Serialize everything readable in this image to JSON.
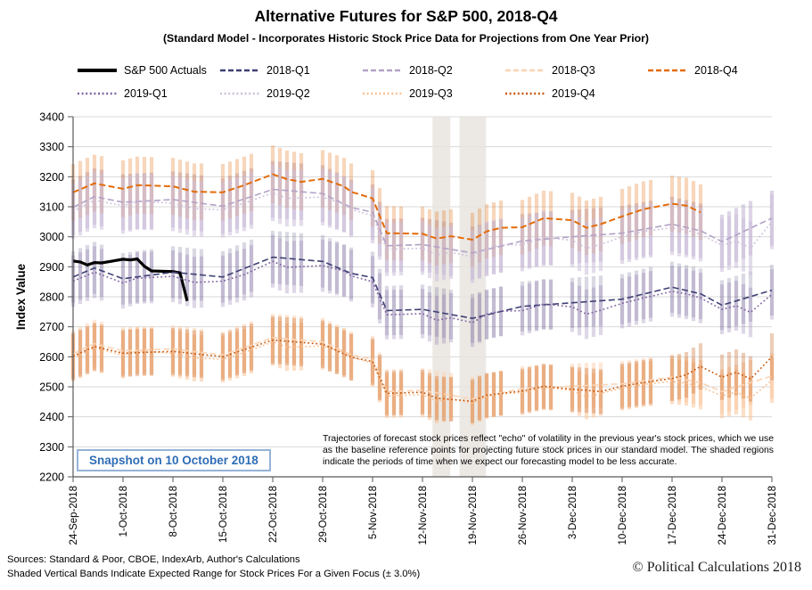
{
  "snapshot_label": "Snapshot on 10 October 2018",
  "annotation": "Trajectories of forecast stock prices reflect \"echo\" of volatility in  the previous year's stock prices, which we use as the baseline reference points for projecting future stock prices in our standard model.   The shaded regions indicate the periods of time when we expect our forecasting model to be less accurate.",
  "footer": {
    "sources": "Sources: Standard & Poor, CBOE, IndexArb, Author's Calculations",
    "bands_note": "Shaded Vertical Bands Indicate Expected Range for Stock Prices For a Given Focus (± 3.0%)",
    "copyright": "© Political Calculations 2018"
  },
  "colors": {
    "grid": "#D9D9D9",
    "axis": "#595959",
    "tick_text": "#000000",
    "shaded_region": "#E7E4DE",
    "snapshot_text": "#2F6DB5",
    "snapshot_border": "#95B3D7"
  },
  "chart_data": {
    "type": "line",
    "title": "Alternative Futures for S&P 500, 2018-Q4",
    "subtitle": "(Standard Model - Incorporates Historic Stock Price Data for Projections from One Year Prior)",
    "xlabel": "",
    "ylabel": "Index Value",
    "ylim": [
      2200,
      3400
    ],
    "ytick_step": 100,
    "grid": true,
    "legend_position": "top",
    "band_pct": 3.0,
    "x_unit": "calendar days since 24-Sep-2018 (day 0 = Monday; weekends skipped)",
    "x_ticks": [
      {
        "day": 0,
        "label": "24-Sep-2018"
      },
      {
        "day": 7,
        "label": "1-Oct-2018"
      },
      {
        "day": 14,
        "label": "8-Oct-2018"
      },
      {
        "day": 21,
        "label": "15-Oct-2018"
      },
      {
        "day": 28,
        "label": "22-Oct-2018"
      },
      {
        "day": 35,
        "label": "29-Oct-2018"
      },
      {
        "day": 42,
        "label": "5-Nov-2018"
      },
      {
        "day": 49,
        "label": "12-Nov-2018"
      },
      {
        "day": 56,
        "label": "19-Nov-2018"
      },
      {
        "day": 63,
        "label": "26-Nov-2018"
      },
      {
        "day": 70,
        "label": "3-Dec-2018"
      },
      {
        "day": 77,
        "label": "10-Dec-2018"
      },
      {
        "day": 84,
        "label": "17-Dec-2018"
      },
      {
        "day": 91,
        "label": "24-Dec-2018"
      },
      {
        "day": 98,
        "label": "31-Dec-2018"
      }
    ],
    "shaded_regions": [
      {
        "from_day": 50.4,
        "to_day": 52.9
      },
      {
        "from_day": 54.2,
        "to_day": 57.9
      }
    ],
    "series": [
      {
        "id": "sp500-actuals",
        "name": "S&P 500 Actuals",
        "style": "solid",
        "color": "#000000",
        "line_width": 3.2,
        "bands": false,
        "band_opacity": 0,
        "points": [
          [
            0,
            2919
          ],
          [
            1,
            2916
          ],
          [
            2,
            2906
          ],
          [
            3,
            2914
          ],
          [
            4,
            2913
          ],
          [
            7,
            2925
          ],
          [
            8,
            2923
          ],
          [
            9,
            2926
          ],
          [
            10,
            2902
          ],
          [
            11,
            2886
          ],
          [
            14,
            2884
          ],
          [
            15,
            2880
          ],
          [
            16,
            2786
          ]
        ]
      },
      {
        "id": "2018-q1",
        "name": "2018-Q1",
        "style": "dashed",
        "color": "#3F3F74",
        "line_width": 1.6,
        "bands": true,
        "band_opacity": 0.2,
        "points": [
          [
            0,
            2866
          ],
          [
            3,
            2896
          ],
          [
            7,
            2860
          ],
          [
            14,
            2882
          ],
          [
            21,
            2866
          ],
          [
            28,
            2932
          ],
          [
            35,
            2918
          ],
          [
            40,
            2868
          ],
          [
            42,
            2864
          ],
          [
            44,
            2754
          ],
          [
            49,
            2758
          ],
          [
            56,
            2728
          ],
          [
            63,
            2768
          ],
          [
            70,
            2780
          ],
          [
            77,
            2792
          ],
          [
            84,
            2832
          ],
          [
            88,
            2810
          ],
          [
            91,
            2772
          ],
          [
            98,
            2822
          ]
        ]
      },
      {
        "id": "2018-q2",
        "name": "2018-Q2",
        "style": "dashed",
        "color": "#B3A2C7",
        "line_width": 1.6,
        "bands": true,
        "band_opacity": 0.45,
        "points": [
          [
            0,
            3098
          ],
          [
            3,
            3134
          ],
          [
            7,
            3115
          ],
          [
            14,
            3124
          ],
          [
            21,
            3102
          ],
          [
            28,
            3158
          ],
          [
            35,
            3144
          ],
          [
            40,
            3086
          ],
          [
            42,
            3082
          ],
          [
            44,
            2970
          ],
          [
            49,
            2974
          ],
          [
            56,
            2946
          ],
          [
            63,
            2986
          ],
          [
            70,
            3000
          ],
          [
            77,
            3012
          ],
          [
            84,
            3042
          ],
          [
            88,
            3020
          ],
          [
            91,
            2984
          ],
          [
            98,
            3062
          ]
        ]
      },
      {
        "id": "2018-q3",
        "name": "2018-Q3",
        "style": "dashed",
        "color": "#FBD4B4",
        "line_width": 1.6,
        "bands": true,
        "band_opacity": 0.55,
        "points": [
          [
            0,
            2610
          ],
          [
            3,
            2644
          ],
          [
            7,
            2620
          ],
          [
            14,
            2626
          ],
          [
            21,
            2606
          ],
          [
            28,
            2664
          ],
          [
            35,
            2650
          ],
          [
            40,
            2596
          ],
          [
            42,
            2592
          ],
          [
            44,
            2484
          ],
          [
            49,
            2488
          ],
          [
            56,
            2460
          ],
          [
            63,
            2494
          ],
          [
            70,
            2502
          ],
          [
            77,
            2510
          ],
          [
            84,
            2532
          ],
          [
            88,
            2514
          ],
          [
            91,
            2484
          ],
          [
            98,
            2536
          ]
        ]
      },
      {
        "id": "2018-q4",
        "name": "2018-Q4",
        "style": "dashed",
        "color": "#E36C0A",
        "line_width": 2.0,
        "bands": true,
        "band_opacity": 0.28,
        "points": [
          [
            0,
            3148
          ],
          [
            3,
            3178
          ],
          [
            7,
            3160
          ],
          [
            9,
            3172
          ],
          [
            14,
            3168
          ],
          [
            17,
            3150
          ],
          [
            21,
            3148
          ],
          [
            24,
            3172
          ],
          [
            28,
            3208
          ],
          [
            30,
            3192
          ],
          [
            32,
            3183
          ],
          [
            35,
            3193
          ],
          [
            38,
            3168
          ],
          [
            40,
            3132
          ],
          [
            42,
            3128
          ],
          [
            44,
            3012
          ],
          [
            49,
            3010
          ],
          [
            51,
            2994
          ],
          [
            53,
            3002
          ],
          [
            56,
            2990
          ],
          [
            58,
            3018
          ],
          [
            60,
            3030
          ],
          [
            63,
            3032
          ],
          [
            66,
            3062
          ],
          [
            70,
            3055
          ],
          [
            72,
            3030
          ],
          [
            74,
            3042
          ],
          [
            77,
            3068
          ],
          [
            80,
            3092
          ],
          [
            84,
            3110
          ],
          [
            86,
            3104
          ],
          [
            88,
            3082
          ]
        ]
      },
      {
        "id": "2019-q1",
        "name": "2019-Q1",
        "style": "dotted",
        "color": "#8064A2",
        "line_width": 1.6,
        "bands": true,
        "band_opacity": 0.26,
        "points": [
          [
            0,
            2852
          ],
          [
            3,
            2882
          ],
          [
            7,
            2846
          ],
          [
            9,
            2862
          ],
          [
            14,
            2868
          ],
          [
            17,
            2848
          ],
          [
            21,
            2852
          ],
          [
            24,
            2874
          ],
          [
            28,
            2918
          ],
          [
            30,
            2898
          ],
          [
            35,
            2904
          ],
          [
            38,
            2886
          ],
          [
            40,
            2854
          ],
          [
            42,
            2850
          ],
          [
            44,
            2740
          ],
          [
            49,
            2744
          ],
          [
            51,
            2722
          ],
          [
            53,
            2730
          ],
          [
            56,
            2714
          ],
          [
            58,
            2742
          ],
          [
            60,
            2752
          ],
          [
            63,
            2754
          ],
          [
            66,
            2776
          ],
          [
            70,
            2766
          ],
          [
            72,
            2742
          ],
          [
            74,
            2755
          ],
          [
            77,
            2778
          ],
          [
            80,
            2796
          ],
          [
            84,
            2818
          ],
          [
            86,
            2810
          ],
          [
            88,
            2796
          ],
          [
            91,
            2758
          ],
          [
            93,
            2770
          ],
          [
            95,
            2748
          ],
          [
            98,
            2808
          ]
        ]
      },
      {
        "id": "2019-q2",
        "name": "2019-Q2",
        "style": "dotted",
        "color": "#CCC0DA",
        "line_width": 1.6,
        "bands": true,
        "band_opacity": 0.55,
        "points": [
          [
            0,
            3085
          ],
          [
            3,
            3122
          ],
          [
            7,
            3103
          ],
          [
            9,
            3118
          ],
          [
            14,
            3112
          ],
          [
            17,
            3094
          ],
          [
            21,
            3090
          ],
          [
            24,
            3112
          ],
          [
            28,
            3146
          ],
          [
            30,
            3128
          ],
          [
            35,
            3132
          ],
          [
            38,
            3108
          ],
          [
            40,
            3074
          ],
          [
            42,
            3070
          ],
          [
            44,
            2958
          ],
          [
            49,
            2962
          ],
          [
            51,
            2940
          ],
          [
            53,
            2948
          ],
          [
            56,
            2934
          ],
          [
            58,
            2962
          ],
          [
            60,
            2972
          ],
          [
            63,
            2974
          ],
          [
            66,
            2998
          ],
          [
            70,
            2988
          ],
          [
            72,
            2962
          ],
          [
            74,
            2975
          ],
          [
            77,
            3000
          ],
          [
            80,
            3018
          ],
          [
            84,
            3030
          ],
          [
            86,
            3022
          ],
          [
            88,
            3008
          ],
          [
            91,
            2972
          ],
          [
            93,
            2985
          ],
          [
            95,
            2962
          ],
          [
            98,
            3050
          ]
        ]
      },
      {
        "id": "2019-q3",
        "name": "2019-Q3",
        "style": "dotted",
        "color": "#FAC090",
        "line_width": 1.6,
        "bands": true,
        "band_opacity": 0.5,
        "points": [
          [
            0,
            2596
          ],
          [
            3,
            2630
          ],
          [
            7,
            2606
          ],
          [
            9,
            2620
          ],
          [
            14,
            2612
          ],
          [
            17,
            2596
          ],
          [
            21,
            2592
          ],
          [
            24,
            2614
          ],
          [
            28,
            2650
          ],
          [
            30,
            2632
          ],
          [
            35,
            2636
          ],
          [
            38,
            2616
          ],
          [
            40,
            2582
          ],
          [
            42,
            2578
          ],
          [
            44,
            2470
          ],
          [
            49,
            2474
          ],
          [
            51,
            2452
          ],
          [
            53,
            2460
          ],
          [
            56,
            2446
          ],
          [
            58,
            2468
          ],
          [
            60,
            2478
          ],
          [
            63,
            2480
          ],
          [
            66,
            2498
          ],
          [
            70,
            2488
          ],
          [
            72,
            2466
          ],
          [
            74,
            2478
          ],
          [
            77,
            2496
          ],
          [
            80,
            2508
          ],
          [
            84,
            2518
          ],
          [
            86,
            2512
          ],
          [
            88,
            2500
          ],
          [
            91,
            2470
          ],
          [
            93,
            2482
          ],
          [
            95,
            2462
          ],
          [
            98,
            2522
          ]
        ]
      },
      {
        "id": "2019-q4",
        "name": "2019-Q4",
        "style": "dotted",
        "color": "#C55A11",
        "line_width": 1.6,
        "bands": true,
        "band_opacity": 0.3,
        "points": [
          [
            0,
            2602
          ],
          [
            3,
            2634
          ],
          [
            7,
            2612
          ],
          [
            14,
            2618
          ],
          [
            21,
            2600
          ],
          [
            28,
            2656
          ],
          [
            35,
            2642
          ],
          [
            40,
            2588
          ],
          [
            42,
            2584
          ],
          [
            44,
            2478
          ],
          [
            49,
            2482
          ],
          [
            51,
            2462
          ],
          [
            56,
            2452
          ],
          [
            58,
            2472
          ],
          [
            63,
            2486
          ],
          [
            66,
            2502
          ],
          [
            70,
            2492
          ],
          [
            74,
            2484
          ],
          [
            77,
            2502
          ],
          [
            80,
            2514
          ],
          [
            84,
            2528
          ],
          [
            86,
            2540
          ],
          [
            88,
            2568
          ],
          [
            91,
            2532
          ],
          [
            93,
            2548
          ],
          [
            95,
            2526
          ],
          [
            98,
            2600
          ]
        ]
      }
    ]
  }
}
